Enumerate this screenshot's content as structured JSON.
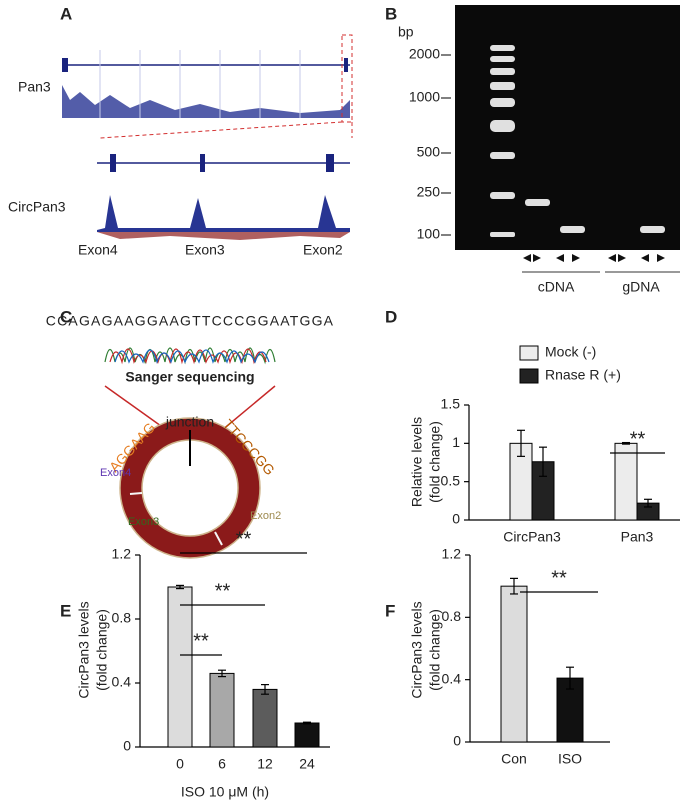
{
  "panels": {
    "A": {
      "label": "A",
      "track1": "Pan3",
      "track2": "CircPan3",
      "exons": [
        "Exon4",
        "Exon3",
        "Exon2"
      ]
    },
    "B": {
      "label": "B",
      "unit": "bp",
      "ladder": [
        2000,
        1000,
        500,
        250,
        100
      ],
      "groups": [
        "cDNA",
        "gDNA"
      ]
    },
    "C": {
      "label": "C",
      "sequence": "CCAGAGAAGGAAGTTCCCGGAATGGA",
      "method": "Sanger sequencing",
      "junction": "junction",
      "left_seq": "AGGAAG",
      "right_seq": "TTCCCGG",
      "exons": [
        "Exon4",
        "Exon3",
        "Exon2"
      ]
    }
  },
  "chart_data": [
    {
      "type": "bar",
      "label": "D",
      "ylabel": [
        "Relative levels",
        "(fold change)"
      ],
      "categories": [
        "CircPan3",
        "Pan3"
      ],
      "series": [
        {
          "name": "Mock (-)",
          "color": "#ececec",
          "values": [
            1.0,
            1.0
          ],
          "errors": [
            0.17,
            0.01
          ]
        },
        {
          "name": "Rnase R (+)",
          "color": "#222222",
          "values": [
            0.76,
            0.22
          ],
          "errors": [
            0.19,
            0.05
          ]
        }
      ],
      "ylim": [
        0,
        1.5
      ],
      "yticks": [
        0,
        0.5,
        1,
        1.5
      ],
      "annotations": [
        "**"
      ]
    },
    {
      "type": "bar",
      "label": "E",
      "ylabel": [
        "CircPan3 levels",
        "(fold change)"
      ],
      "xlabel": "ISO 10 μM (h)",
      "categories": [
        "0",
        "6",
        "12",
        "24"
      ],
      "values": [
        1.0,
        0.46,
        0.36,
        0.15
      ],
      "errors": [
        0.01,
        0.02,
        0.03,
        0.005
      ],
      "colors": [
        "#dcdcdc",
        "#a8a8a8",
        "#5c5c5c",
        "#111111"
      ],
      "ylim": [
        0,
        1.2
      ],
      "yticks": [
        0,
        0.4,
        0.8,
        1.2
      ],
      "annotations": [
        "**",
        "**",
        "**"
      ]
    },
    {
      "type": "bar",
      "label": "F",
      "ylabel": [
        "CircPan3 levels",
        "(fold change)"
      ],
      "categories": [
        "Con",
        "ISO"
      ],
      "values": [
        1.0,
        0.41
      ],
      "errors": [
        0.05,
        0.07
      ],
      "colors": [
        "#dcdcdc",
        "#111111"
      ],
      "ylim": [
        0,
        1.2
      ],
      "yticks": [
        0,
        0.4,
        0.8,
        1.2
      ],
      "annotations": [
        "**"
      ]
    }
  ]
}
